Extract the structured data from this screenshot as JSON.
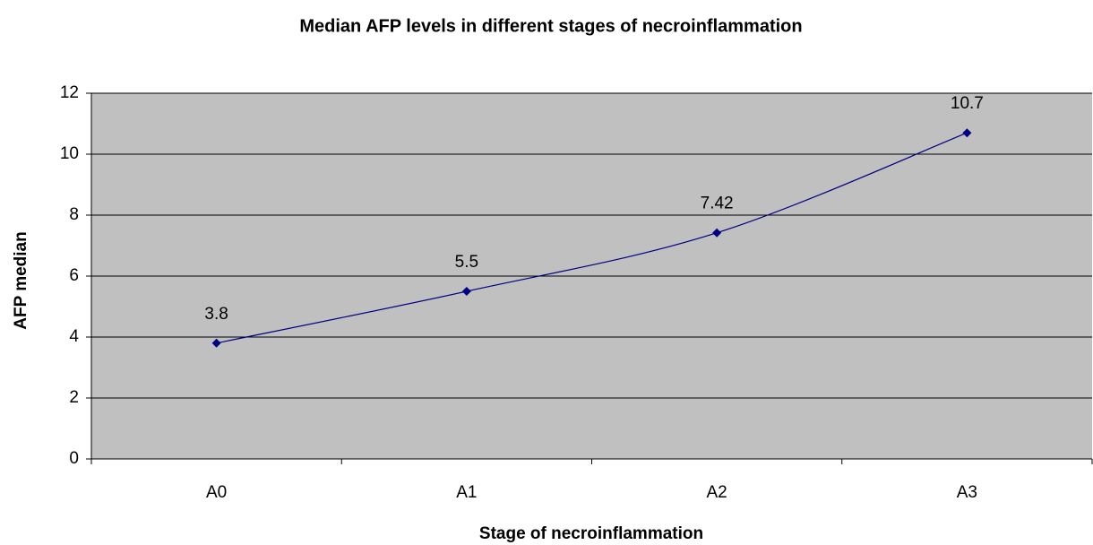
{
  "chart_data": {
    "type": "line",
    "title": "Median AFP levels in different stages of necroinflammation",
    "x_label": "Stage of necroinflammation",
    "y_label": "AFP median",
    "categories": [
      "A0",
      "A1",
      "A2",
      "A3"
    ],
    "series": [
      {
        "name": "AFP median",
        "color": "#000080",
        "values": [
          3.8,
          5.5,
          7.42,
          10.7
        ]
      }
    ],
    "ylim": [
      0,
      12
    ],
    "yticks": [
      0,
      2,
      4,
      6,
      8,
      10,
      12
    ],
    "grid": true,
    "plot_background": "#c0c0c0",
    "smooth": true
  }
}
